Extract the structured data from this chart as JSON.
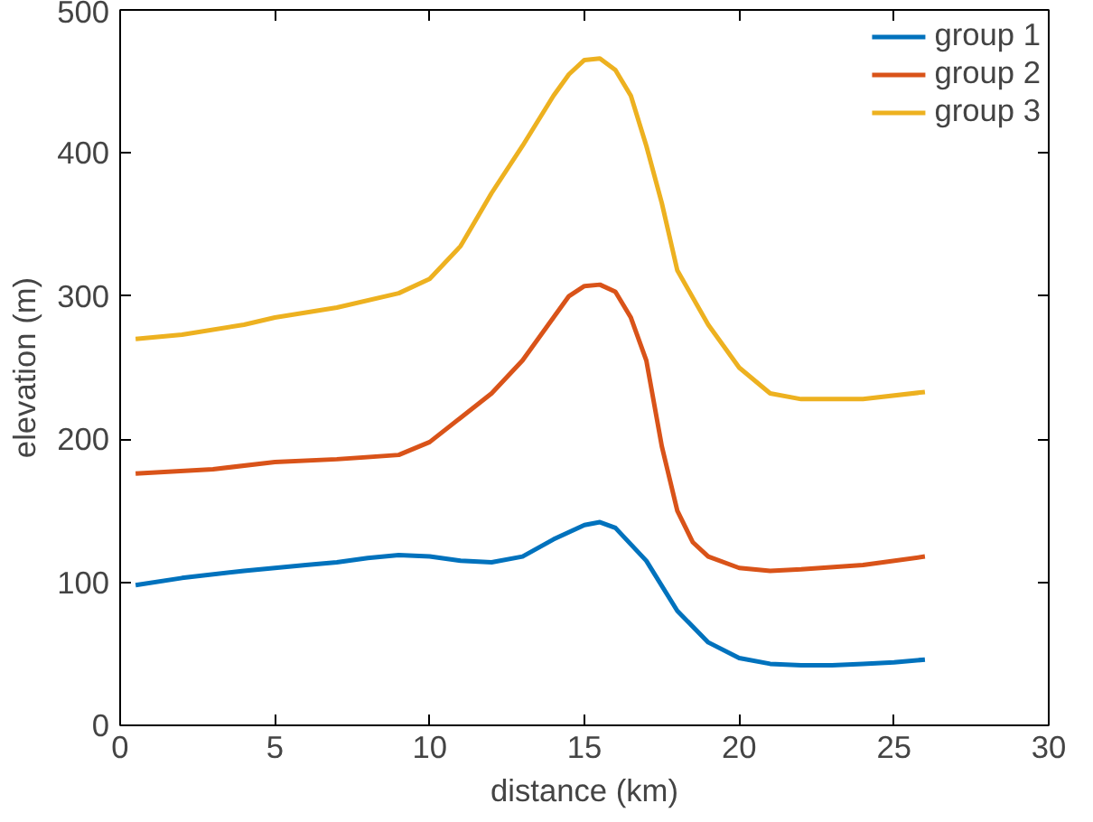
{
  "chart_data": {
    "type": "line",
    "xlabel": "distance (km)",
    "ylabel": "elevation (m)",
    "xlim": [
      0,
      30
    ],
    "ylim": [
      0,
      500
    ],
    "xticks": [
      0,
      5,
      10,
      15,
      20,
      25,
      30
    ],
    "yticks": [
      0,
      100,
      200,
      300,
      400,
      500
    ],
    "grid": false,
    "legend": "top right",
    "line_style": "solid",
    "marker": "none",
    "series": [
      {
        "name": "group 1",
        "color": "#0072bd",
        "x": [
          0.5,
          2,
          4,
          6,
          7,
          8,
          9,
          10,
          11,
          12,
          13,
          14,
          15,
          15.5,
          16,
          17,
          18,
          19,
          20,
          21,
          22,
          23,
          24,
          25,
          26
        ],
        "values": [
          98,
          103,
          108,
          112,
          114,
          117,
          119,
          118,
          115,
          114,
          118,
          130,
          140,
          142,
          138,
          115,
          80,
          58,
          47,
          43,
          42,
          42,
          43,
          44,
          46
        ]
      },
      {
        "name": "group 2",
        "color": "#d95319",
        "x": [
          0.5,
          3,
          5,
          7,
          9,
          10,
          11,
          12,
          13,
          14,
          14.5,
          15,
          15.5,
          16,
          16.5,
          17,
          17.5,
          18,
          18.5,
          19,
          20,
          21,
          22,
          24,
          26
        ],
        "values": [
          176,
          179,
          184,
          186,
          189,
          198,
          215,
          232,
          255,
          285,
          300,
          307,
          308,
          303,
          285,
          255,
          195,
          150,
          128,
          118,
          110,
          108,
          109,
          112,
          118
        ]
      },
      {
        "name": "group 3",
        "color": "#edb120",
        "x": [
          0.5,
          2,
          4,
          5,
          7,
          9,
          10,
          11,
          12,
          13,
          14,
          14.5,
          15,
          15.5,
          16,
          16.5,
          17,
          17.5,
          18,
          19,
          20,
          21,
          22,
          24,
          26
        ],
        "values": [
          270,
          273,
          280,
          285,
          292,
          302,
          312,
          335,
          372,
          405,
          440,
          455,
          465,
          466,
          458,
          440,
          405,
          365,
          318,
          280,
          250,
          232,
          228,
          228,
          233
        ]
      }
    ]
  }
}
